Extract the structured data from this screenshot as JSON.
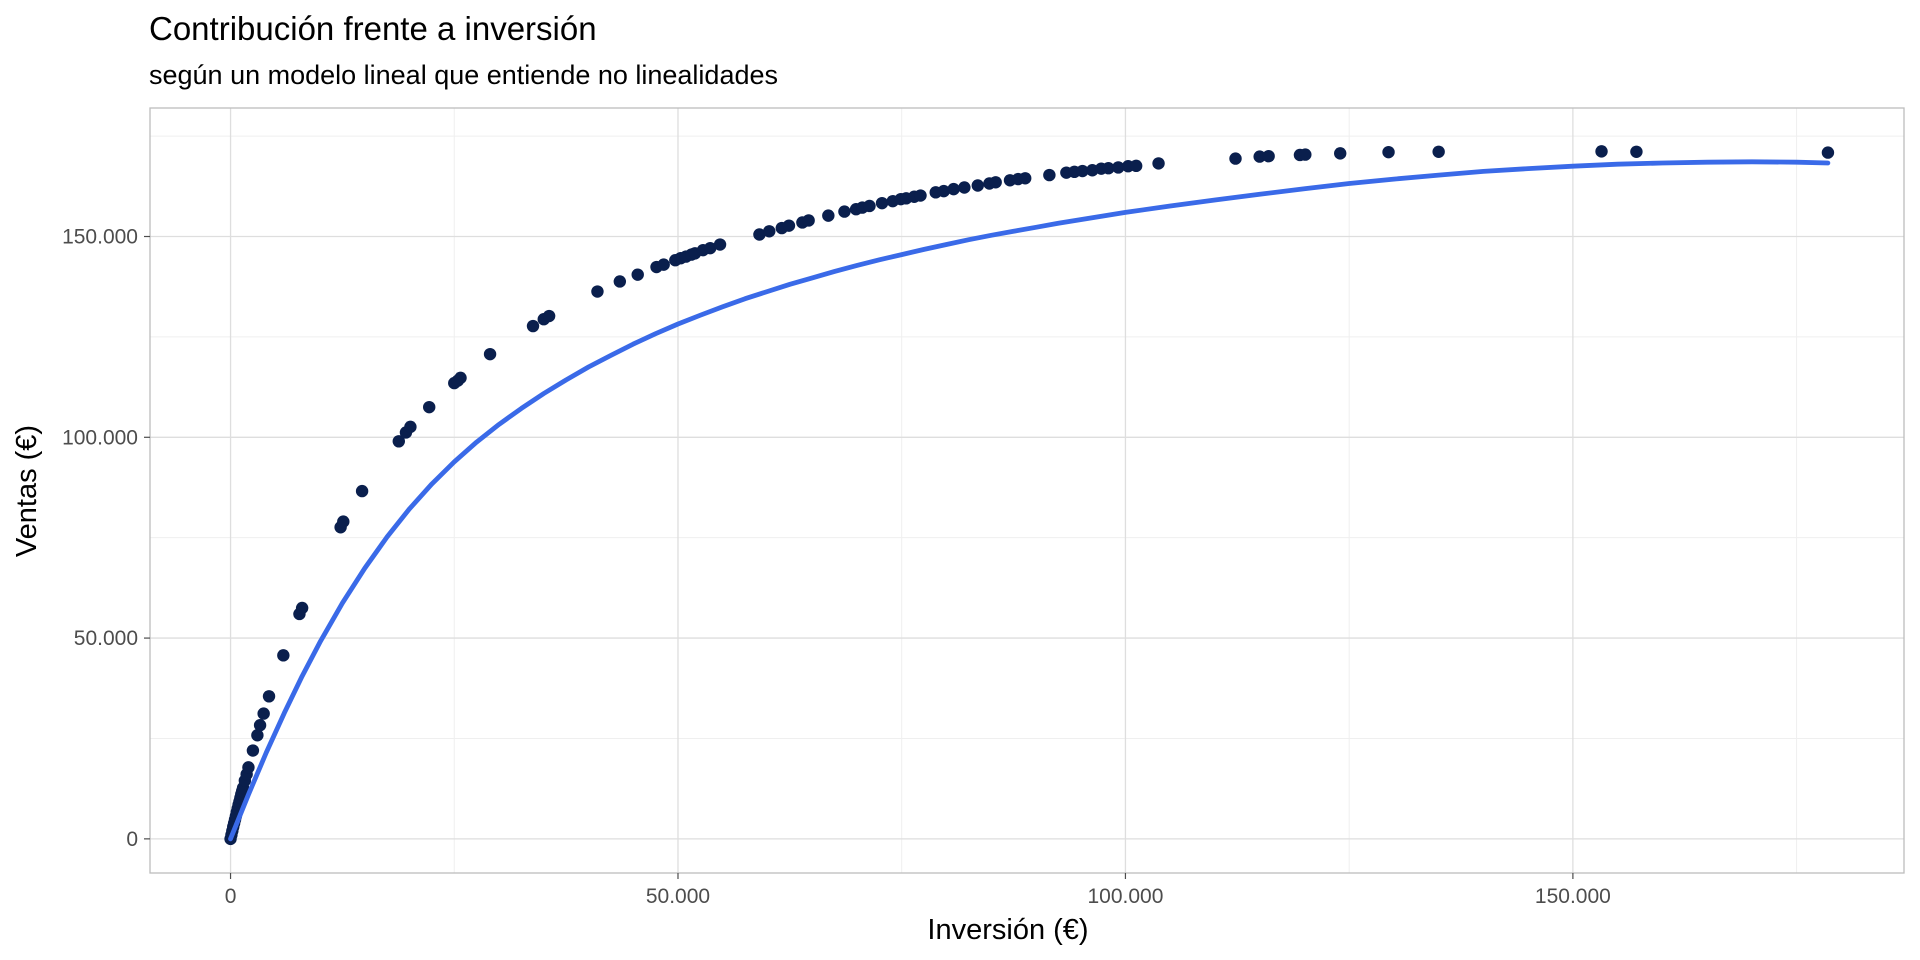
{
  "chart_data": {
    "type": "scatter",
    "title": "Contribución frente a inversión",
    "subtitle": "según un modelo lineal que entiende no linealidades",
    "xlabel": "Inversión (€)",
    "ylabel": "Ventas (€)",
    "xlim": [
      -9000,
      187000
    ],
    "ylim": [
      -8500,
      182000
    ],
    "x_ticks": [
      0,
      50000,
      100000,
      150000
    ],
    "x_tick_labels": [
      "0",
      "50.000",
      "100.000",
      "150.000"
    ],
    "y_ticks": [
      0,
      50000,
      100000,
      150000
    ],
    "y_tick_labels": [
      "0",
      "50.000",
      "100.000",
      "150.000"
    ],
    "x_minor_ticks": [
      25000,
      75000,
      125000,
      175000
    ],
    "y_minor_ticks": [
      25000,
      75000,
      125000,
      175000
    ],
    "grid": true,
    "colors": {
      "points": "#0a1f4d",
      "curve": "#3a6ae8"
    },
    "series": [
      {
        "type": "scatter",
        "x": [
          0,
          100,
          200,
          300,
          400,
          500,
          600,
          700,
          800,
          900,
          1000,
          1100,
          1200,
          1300,
          1400,
          1600,
          1800,
          2000,
          2500,
          3000,
          3300,
          3700,
          4300,
          5900,
          7700,
          8000,
          12300,
          12600,
          14700,
          18800,
          19600,
          20100,
          22200,
          25000,
          25400,
          25700,
          29000,
          33800,
          35000,
          35600,
          41000,
          43500,
          45500,
          47600,
          48400,
          49700,
          50300,
          50900,
          51500,
          51900,
          52800,
          53600,
          54700,
          59100,
          60200,
          61600,
          62400,
          63900,
          64600,
          66800,
          68600,
          69900,
          70600,
          71400,
          72800,
          74000,
          74900,
          75500,
          76400,
          77100,
          78800,
          79700,
          80800,
          82000,
          83500,
          84800,
          85500,
          87100,
          88000,
          88800,
          91500,
          93400,
          94300,
          95200,
          96300,
          97300,
          98100,
          99200,
          100300,
          101200,
          103700,
          112300,
          115000,
          116000,
          119500,
          120100,
          124000,
          129400,
          135000,
          153200,
          157100,
          178500
        ],
        "y": [
          0,
          1000,
          2000,
          3000,
          3900,
          4800,
          5700,
          6700,
          7600,
          8500,
          9300,
          10200,
          11100,
          11900,
          12700,
          14500,
          16100,
          17800,
          22000,
          25800,
          28300,
          31200,
          35500,
          45700,
          56000,
          57500,
          77600,
          79000,
          86600,
          99000,
          101200,
          102600,
          107500,
          113500,
          114100,
          114800,
          120700,
          127700,
          129400,
          130200,
          136300,
          138800,
          140500,
          142400,
          143000,
          144100,
          144600,
          145000,
          145500,
          145800,
          146600,
          147100,
          148000,
          150500,
          151300,
          152100,
          152700,
          153500,
          154000,
          155200,
          156200,
          156800,
          157200,
          157600,
          158300,
          158800,
          159300,
          159500,
          159900,
          160200,
          161000,
          161300,
          161800,
          162200,
          162700,
          163200,
          163500,
          164000,
          164300,
          164500,
          165300,
          165900,
          166100,
          166300,
          166500,
          166900,
          167000,
          167200,
          167500,
          167600,
          168200,
          169400,
          169900,
          170000,
          170300,
          170400,
          170700,
          171000,
          171100,
          171200,
          171100,
          170900
        ]
      },
      {
        "type": "line",
        "x": [
          0,
          2000,
          4000,
          6000,
          8000,
          10000,
          12500,
          15000,
          17500,
          20000,
          22500,
          25000,
          27500,
          30000,
          32500,
          35000,
          37500,
          40000,
          42500,
          45000,
          47500,
          50000,
          52500,
          55000,
          57500,
          60000,
          62500,
          65000,
          67500,
          70000,
          72500,
          75000,
          77500,
          80000,
          82500,
          85000,
          87500,
          90000,
          92500,
          95000,
          97500,
          100000,
          105000,
          110000,
          115000,
          120000,
          125000,
          130000,
          135000,
          140000,
          145000,
          150000,
          155000,
          160000,
          165000,
          170000,
          175000,
          178500
        ],
        "y": [
          0,
          11000,
          21500,
          31300,
          40500,
          49000,
          58700,
          67400,
          75200,
          82200,
          88400,
          93900,
          98800,
          103200,
          107200,
          110900,
          114300,
          117500,
          120400,
          123200,
          125800,
          128200,
          130400,
          132500,
          134500,
          136300,
          138100,
          139700,
          141300,
          142800,
          144200,
          145500,
          146800,
          148000,
          149200,
          150300,
          151300,
          152300,
          153300,
          154200,
          155100,
          156000,
          157600,
          159100,
          160500,
          161900,
          163200,
          164300,
          165300,
          166200,
          166900,
          167500,
          168000,
          168300,
          168500,
          168600,
          168500,
          168300
        ]
      }
    ]
  }
}
